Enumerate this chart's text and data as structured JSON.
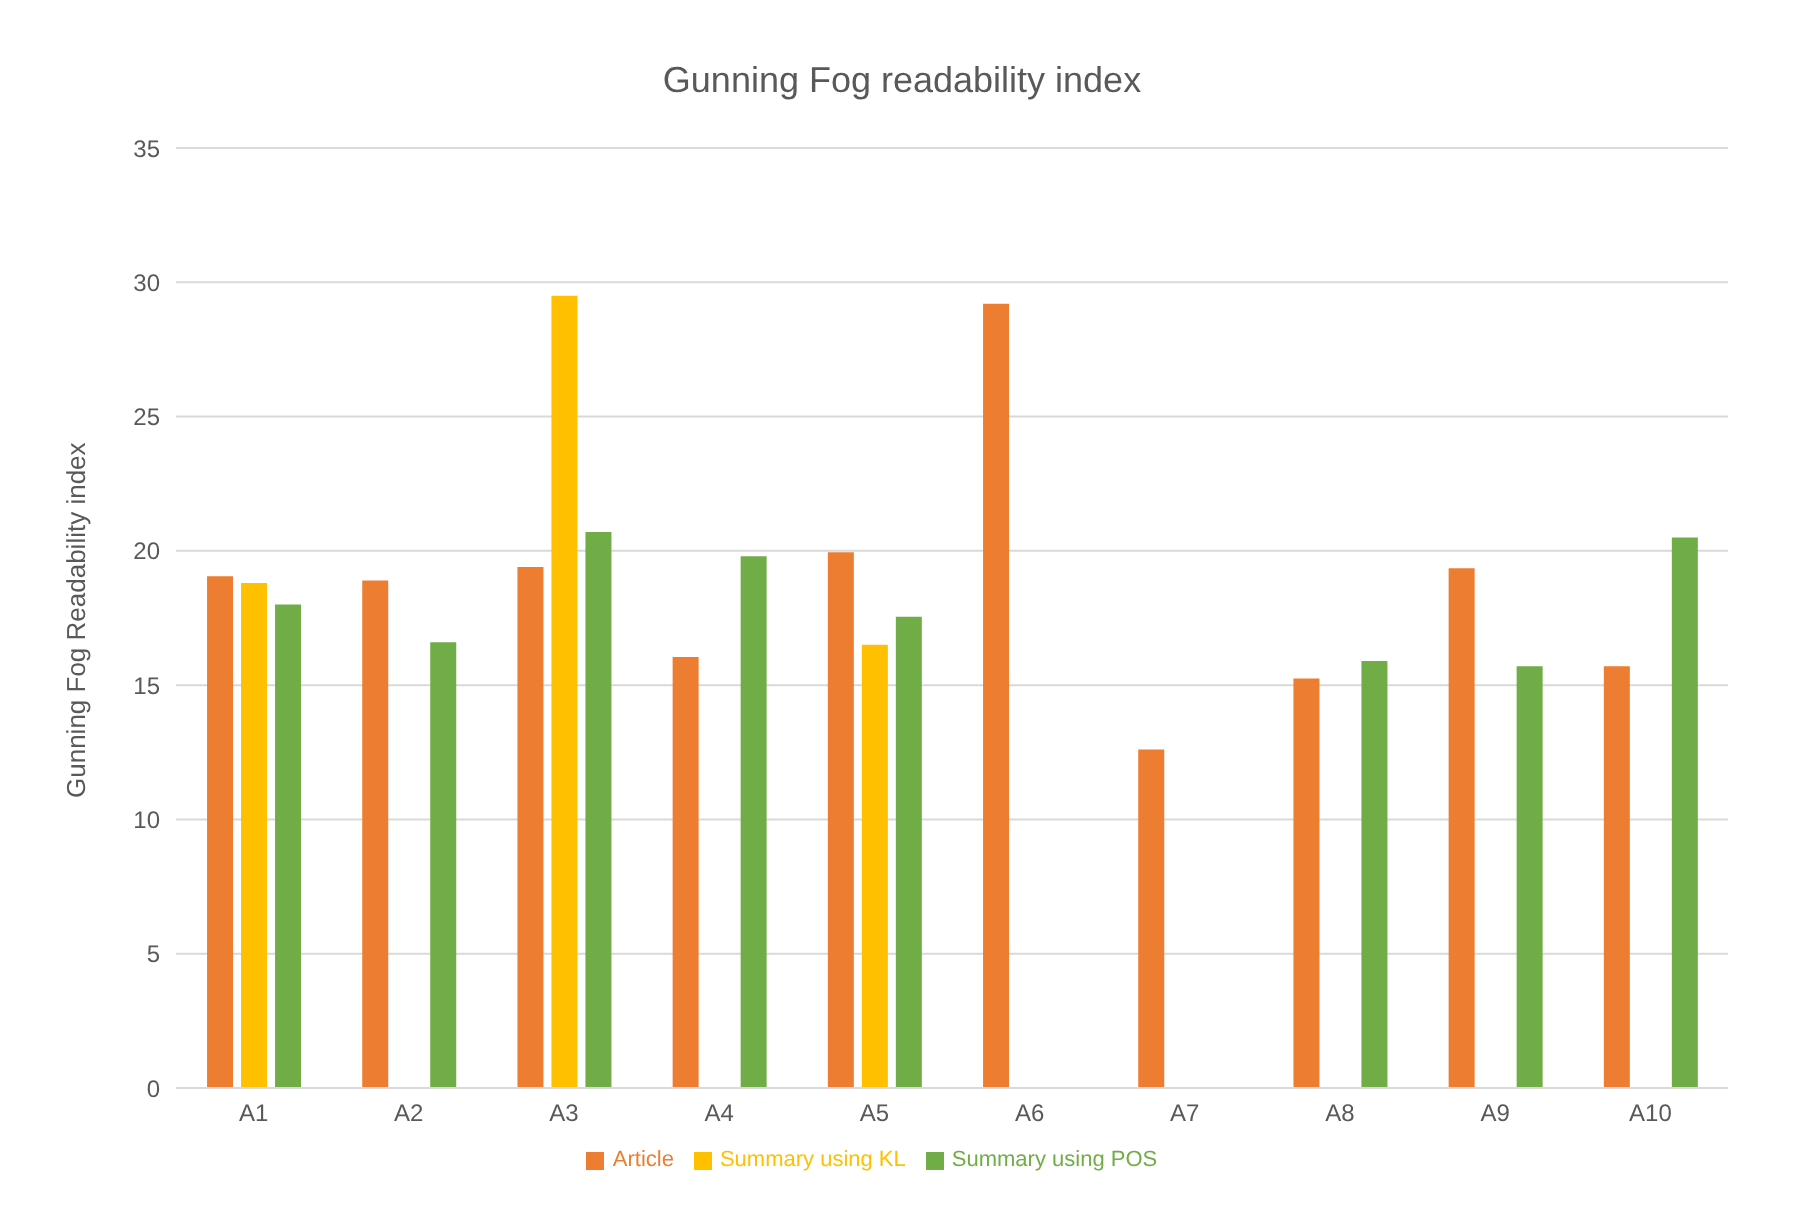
{
  "chart_data": {
    "type": "bar",
    "title": "Gunning Fog readability index",
    "ylabel": "Gunning Fog Readability index",
    "categories": [
      "A1",
      "A2",
      "A3",
      "A4",
      "A5",
      "A6",
      "A7",
      "A8",
      "A9",
      "A10"
    ],
    "series": [
      {
        "name": "Article",
        "color": "#ed7d31",
        "values": [
          19.05,
          18.9,
          19.4,
          16.05,
          19.95,
          29.2,
          12.6,
          15.25,
          19.35,
          15.7
        ]
      },
      {
        "name": "Summary using KL",
        "color": "#ffc000",
        "values": [
          18.8,
          null,
          29.5,
          null,
          16.5,
          null,
          null,
          null,
          null,
          null
        ]
      },
      {
        "name": "Summary using POS",
        "color": "#70ad47",
        "values": [
          18.0,
          16.6,
          20.7,
          19.8,
          17.55,
          null,
          null,
          15.9,
          15.7,
          20.5
        ]
      }
    ],
    "ylim": [
      0,
      35
    ],
    "yticks": [
      0,
      5,
      10,
      15,
      20,
      25,
      30,
      35
    ],
    "grid": "y",
    "legend": "bottom"
  }
}
